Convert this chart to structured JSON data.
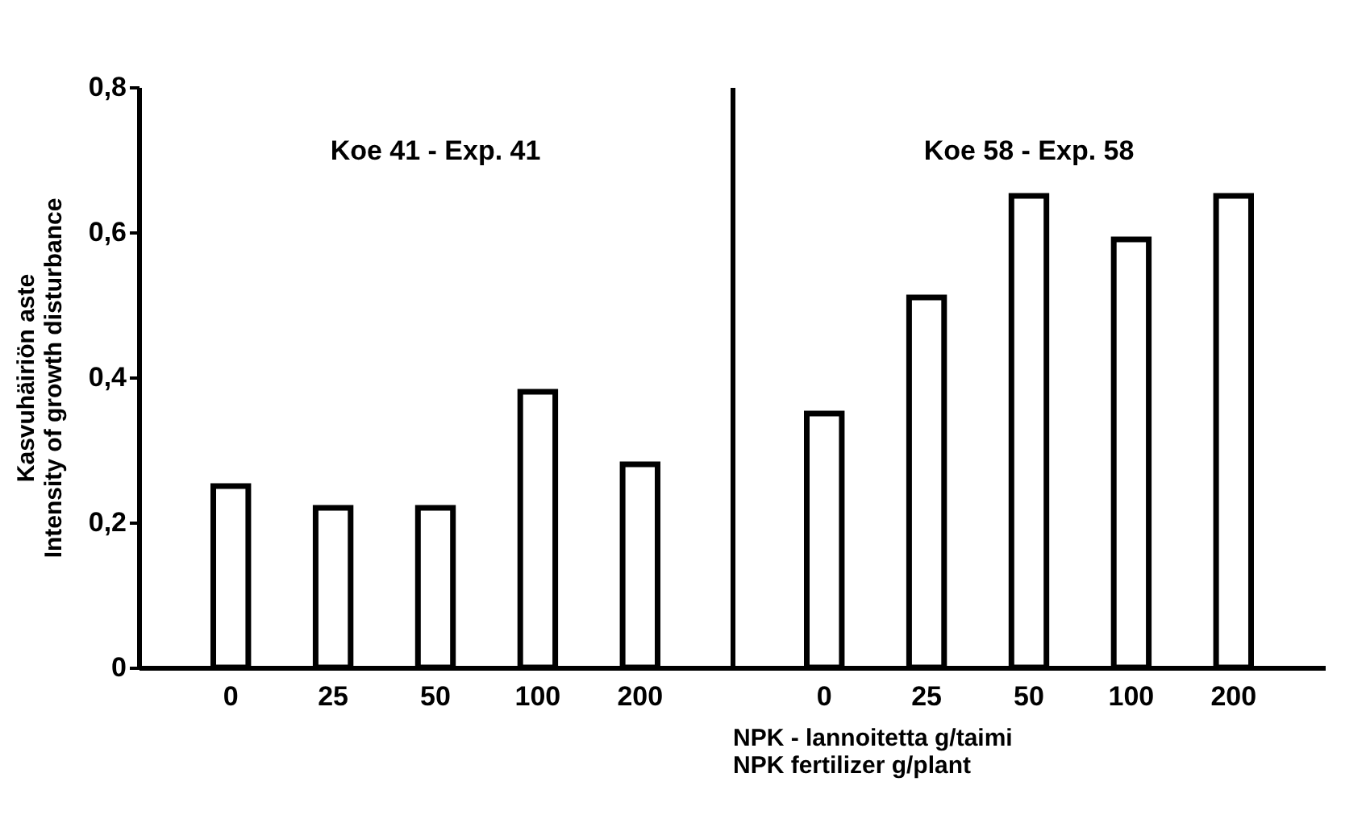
{
  "chart_data": [
    {
      "type": "bar",
      "categories": [
        "0",
        "25",
        "50",
        "100",
        "200"
      ],
      "values": [
        0.25,
        0.22,
        0.22,
        0.38,
        0.28
      ],
      "color": "#ffffff",
      "ylabel": "Kasvuhäiriön aste\nIntensity of growth disturbance",
      "annotations": [
        "Koe 41 - Exp. 41"
      ],
      "ylim": [
        0,
        0.8
      ],
      "yticks": [
        0,
        {
          "value": 0.2,
          "label": "0,2"
        },
        {
          "value": 0.4,
          "label": "0,4"
        },
        {
          "value": 0.6,
          "label": "0,6"
        },
        {
          "value": 0.8,
          "label": "0,8"
        }
      ],
      "grid": false
    },
    {
      "type": "bar",
      "categories": [
        "0",
        "25",
        "50",
        "100",
        "200"
      ],
      "values": [
        0.35,
        0.51,
        0.65,
        0.59,
        0.65
      ],
      "color": "#ffffff",
      "xlabel": "NPK - lannoitetta g/taimi\nNPK fertilizer g/plant",
      "annotations": [
        "Koe 58 - Exp. 58"
      ],
      "ylim": [
        0,
        0.8
      ],
      "tick_labels": "x",
      "grid": false
    }
  ]
}
